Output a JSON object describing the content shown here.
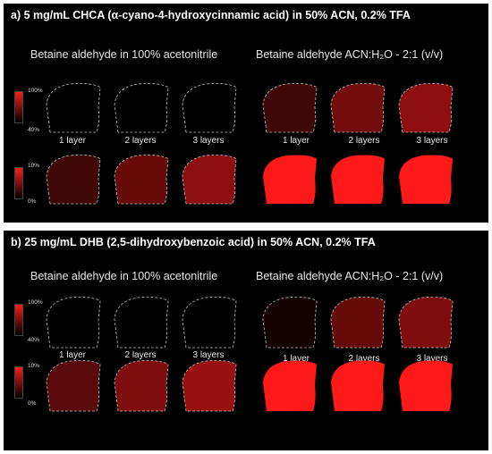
{
  "panels": {
    "a": {
      "title": "a) 5 mg/mL CHCA (α-cyano-4-hydroxycinnamic acid) in 50% ACN, 0.2% TFA",
      "left_group": "Betaine aldehyde in 100% acetonitrile",
      "right_group": "Betaine aldehyde ACN:H₂O - 2:1 (v/v)",
      "scale_top": {
        "max": "100%",
        "min": "40%"
      },
      "scale_bottom": {
        "max": "10%",
        "min": "0%"
      },
      "captions": [
        "1 layer",
        "2 layers",
        "3 layers"
      ],
      "top_row_levels": [
        0.0,
        0.0,
        0.0,
        0.25,
        0.45,
        0.55
      ],
      "bottom_row_levels": [
        0.25,
        0.4,
        0.55,
        1.0,
        1.0,
        1.0
      ]
    },
    "b": {
      "title": "b) 25 mg/mL DHB (2,5-dihydroxybenzoic acid) in 50% ACN, 0.2% TFA",
      "left_group": "Betaine aldehyde in 100% acetonitrile",
      "right_group": "Betaine aldehyde ACN:H₂O - 2:1 (v/v)",
      "scale_top": {
        "max": "100%",
        "min": "40%"
      },
      "scale_bottom": {
        "max": "10%",
        "min": "0%"
      },
      "captions": [
        "1 layer",
        "2 layers",
        "3 layers"
      ],
      "top_row_levels": [
        0.0,
        0.0,
        0.0,
        0.08,
        0.4,
        0.5
      ],
      "bottom_row_levels": [
        0.35,
        0.5,
        0.6,
        1.0,
        1.0,
        1.0
      ]
    }
  },
  "colors": {
    "background": "#000000",
    "signal": "#ff1a1a",
    "outline": "#bfbfbf"
  }
}
